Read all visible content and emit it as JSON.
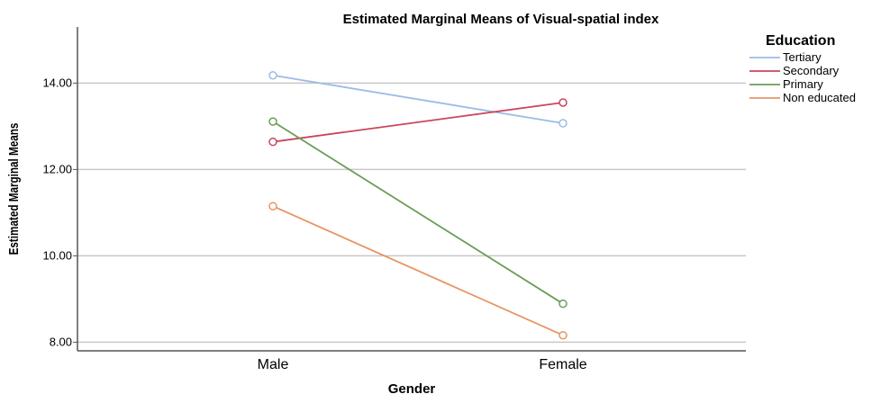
{
  "chart_data": {
    "type": "line",
    "title": "Estimated Marginal Means of Visual-spatial index",
    "xlabel": "Gender",
    "ylabel": "Estimated Marginal Means",
    "categories": [
      "Male",
      "Female"
    ],
    "ylim": [
      7.8,
      15.3
    ],
    "yticks": [
      8,
      10,
      12,
      14
    ],
    "ytick_labels": [
      "8.00",
      "10.00",
      "12.00",
      "14.00"
    ],
    "grid": true,
    "legend_title": "Education",
    "legend_position": "top-right",
    "series": [
      {
        "name": "Tertiary",
        "color": "#9cbce6",
        "values": [
          14.18,
          13.07
        ]
      },
      {
        "name": "Secondary",
        "color": "#c9465a",
        "values": [
          12.64,
          13.55
        ]
      },
      {
        "name": "Primary",
        "color": "#6a9e58",
        "values": [
          13.11,
          8.89
        ]
      },
      {
        "name": "Non educated",
        "color": "#e89464",
        "values": [
          11.15,
          8.16
        ]
      }
    ]
  }
}
